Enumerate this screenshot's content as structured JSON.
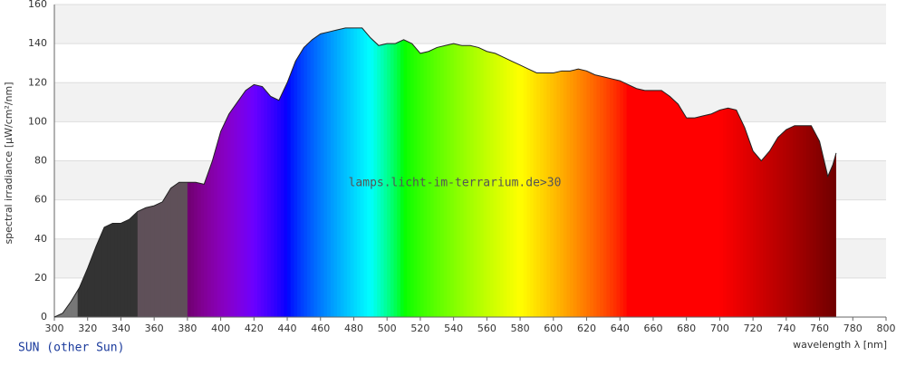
{
  "chart_data": {
    "type": "area",
    "title": "SUN (other Sun)",
    "annotation": "lamps.licht-im-terrarium.de>30",
    "x_label": "wavelength λ [nm]",
    "y_label": "spectral irradiance [µW/cm²/nm]",
    "x": [
      300,
      305,
      310,
      315,
      320,
      325,
      330,
      335,
      340,
      345,
      350,
      355,
      360,
      365,
      370,
      375,
      380,
      385,
      390,
      395,
      400,
      405,
      410,
      415,
      420,
      425,
      430,
      435,
      440,
      445,
      450,
      455,
      460,
      465,
      470,
      475,
      480,
      485,
      490,
      495,
      500,
      505,
      510,
      515,
      520,
      525,
      530,
      535,
      540,
      545,
      550,
      555,
      560,
      565,
      570,
      575,
      580,
      585,
      590,
      595,
      600,
      605,
      610,
      615,
      620,
      625,
      630,
      635,
      640,
      645,
      650,
      655,
      660,
      665,
      670,
      675,
      680,
      685,
      690,
      695,
      700,
      705,
      710,
      715,
      720,
      725,
      730,
      735,
      740,
      745,
      750,
      755,
      760,
      765,
      768,
      770
    ],
    "values": [
      0,
      2,
      8,
      15,
      25,
      36,
      46,
      48,
      48,
      50,
      54,
      56,
      57,
      59,
      66,
      69,
      69,
      69,
      68,
      80,
      95,
      104,
      110,
      116,
      119,
      118,
      113,
      111,
      120,
      131,
      138,
      142,
      145,
      146,
      147,
      148,
      148,
      148,
      143,
      139,
      140,
      140,
      142,
      140,
      135,
      136,
      138,
      139,
      140,
      139,
      139,
      138,
      136,
      135,
      133,
      131,
      129,
      127,
      125,
      125,
      125,
      126,
      126,
      127,
      126,
      124,
      123,
      122,
      121,
      119,
      117,
      116,
      116,
      116,
      113,
      109,
      102,
      102,
      103,
      104,
      106,
      107,
      106,
      97,
      85,
      80,
      85,
      92,
      96,
      98,
      98,
      98,
      90,
      72,
      78,
      84
    ],
    "xlim": [
      300,
      800
    ],
    "xticks": [
      300,
      320,
      340,
      360,
      380,
      400,
      420,
      440,
      460,
      480,
      500,
      520,
      540,
      560,
      580,
      600,
      620,
      640,
      660,
      680,
      700,
      720,
      740,
      760,
      780,
      800
    ],
    "ylim": [
      0,
      160
    ],
    "yticks": [
      0,
      20,
      40,
      60,
      80,
      100,
      120,
      140,
      160
    ],
    "grid": true
  }
}
